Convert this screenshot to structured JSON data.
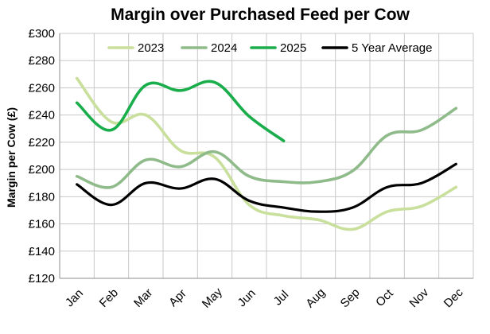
{
  "chart_data": {
    "type": "line",
    "title": "Margin over Purchased Feed per Cow",
    "xlabel": "",
    "ylabel": "Margin per Cow (£)",
    "categories": [
      "Jan",
      "Feb",
      "Mar",
      "Apr",
      "May",
      "Jun",
      "Jul",
      "Aug",
      "Sep",
      "Oct",
      "Nov",
      "Dec"
    ],
    "y_ticks": [
      "£120",
      "£140",
      "£160",
      "£180",
      "£200",
      "£220",
      "£240",
      "£260",
      "£280",
      "£300"
    ],
    "ylim": [
      120,
      300
    ],
    "grid": true,
    "legend_position": "top",
    "series": [
      {
        "name": "2023",
        "color": "#c9df9c",
        "values": [
          267,
          235,
          240,
          214,
          209,
          174,
          166,
          163,
          156,
          169,
          173,
          187
        ]
      },
      {
        "name": "2024",
        "color": "#8fba8a",
        "values": [
          195,
          187,
          207,
          202,
          213,
          195,
          191,
          191,
          199,
          225,
          229,
          245
        ]
      },
      {
        "name": "2025",
        "color": "#1aad4b",
        "values": [
          249,
          229,
          262,
          258,
          264,
          239,
          221,
          null,
          null,
          null,
          null,
          null
        ]
      },
      {
        "name": "5 Year Average",
        "color": "#000000",
        "values": [
          189,
          174,
          190,
          186,
          193,
          177,
          172,
          169,
          172,
          187,
          190,
          204
        ]
      }
    ]
  }
}
